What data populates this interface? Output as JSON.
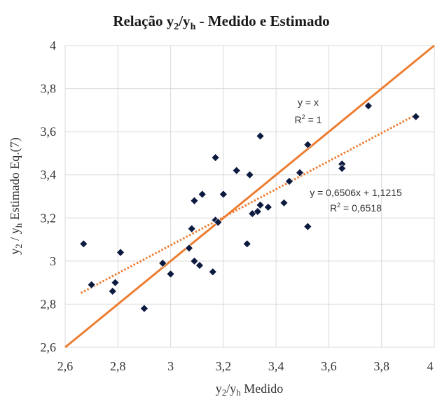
{
  "chart_data": {
    "type": "scatter",
    "title": {
      "prefix": "Relação y",
      "sub1": "2",
      "mid": "/y",
      "sub2": "h",
      "suffix": " - Medido e Estimado"
    },
    "xlabel": {
      "a": "y",
      "sub1": "2",
      "b": "/y",
      "sub2": "h",
      "c": " Medido"
    },
    "ylabel": {
      "a": "y",
      "sub1": "2",
      "b": " / y",
      "sub2": "h",
      "c": "  Estimado  Eq.(7)"
    },
    "xlim": [
      2.6,
      4
    ],
    "ylim": [
      2.6,
      4
    ],
    "xticks": [
      "2,6",
      "2,8",
      "3",
      "3,2",
      "3,4",
      "3,6",
      "3,8",
      "4"
    ],
    "yticks": [
      "2,6",
      "2,8",
      "3",
      "3,2",
      "3,4",
      "3,6",
      "3,8",
      "4"
    ],
    "tick_values": [
      2.6,
      2.8,
      3.0,
      3.2,
      3.4,
      3.6,
      3.8,
      4.0
    ],
    "grid": true,
    "points": [
      {
        "x": 2.67,
        "y": 3.08
      },
      {
        "x": 2.7,
        "y": 2.89
      },
      {
        "x": 2.79,
        "y": 2.9
      },
      {
        "x": 2.78,
        "y": 2.86
      },
      {
        "x": 2.81,
        "y": 3.04
      },
      {
        "x": 2.9,
        "y": 2.78
      },
      {
        "x": 2.97,
        "y": 2.99
      },
      {
        "x": 3.0,
        "y": 2.94
      },
      {
        "x": 3.07,
        "y": 3.06
      },
      {
        "x": 3.08,
        "y": 3.15
      },
      {
        "x": 3.09,
        "y": 3.0
      },
      {
        "x": 3.09,
        "y": 3.28
      },
      {
        "x": 3.11,
        "y": 2.98
      },
      {
        "x": 3.12,
        "y": 3.31
      },
      {
        "x": 3.16,
        "y": 2.95
      },
      {
        "x": 3.17,
        "y": 3.19
      },
      {
        "x": 3.17,
        "y": 3.48
      },
      {
        "x": 3.18,
        "y": 3.18
      },
      {
        "x": 3.2,
        "y": 3.31
      },
      {
        "x": 3.25,
        "y": 3.42
      },
      {
        "x": 3.29,
        "y": 3.08
      },
      {
        "x": 3.3,
        "y": 3.4
      },
      {
        "x": 3.31,
        "y": 3.22
      },
      {
        "x": 3.33,
        "y": 3.23
      },
      {
        "x": 3.34,
        "y": 3.26
      },
      {
        "x": 3.34,
        "y": 3.58
      },
      {
        "x": 3.37,
        "y": 3.25
      },
      {
        "x": 3.43,
        "y": 3.27
      },
      {
        "x": 3.45,
        "y": 3.37
      },
      {
        "x": 3.49,
        "y": 3.41
      },
      {
        "x": 3.52,
        "y": 3.54
      },
      {
        "x": 3.52,
        "y": 3.16
      },
      {
        "x": 3.65,
        "y": 3.45
      },
      {
        "x": 3.65,
        "y": 3.43
      },
      {
        "x": 3.75,
        "y": 3.72
      },
      {
        "x": 3.93,
        "y": 3.67
      }
    ],
    "lines": [
      {
        "kind": "identity",
        "slope": 1,
        "intercept": 0,
        "x_range": [
          2.6,
          4.0
        ]
      },
      {
        "kind": "regression",
        "slope": 0.6506,
        "intercept": 1.1215,
        "x_range": [
          2.66,
          3.93
        ]
      }
    ],
    "annotations": {
      "identity_eq": "y = x",
      "identity_r2": {
        "a": "R",
        "sup": "2",
        "b": " = 1"
      },
      "reg_eq": "y = 0,6506x + 1,1215",
      "reg_r2": {
        "a": "R",
        "sup": "2",
        "b": " = 0,6518"
      }
    },
    "colors": {
      "points": "#0d1a40",
      "identity_line": "#ed7d31",
      "regression_line": "#ed7d31"
    }
  }
}
